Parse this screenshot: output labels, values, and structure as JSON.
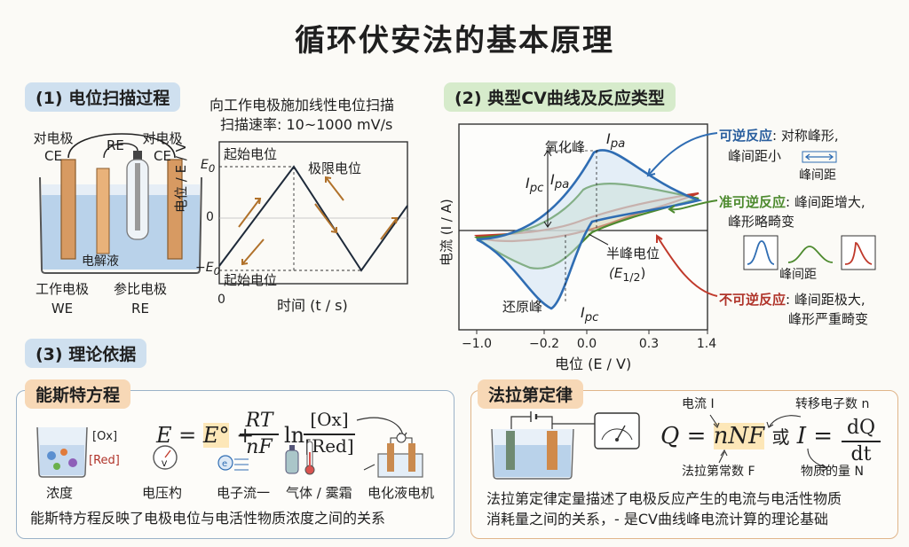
{
  "title": "循环伏安法的基本原理",
  "section1": {
    "label": "(1) 电位扫描过程",
    "cell": {
      "ce_left": "对电极",
      "ce_left_abbr": "CE",
      "re_top": "RE",
      "ce_right": "对电极",
      "ce_right_abbr": "CE",
      "electrolyte": "电解液",
      "we": "工作电极",
      "we_abbr": "WE",
      "ref": "参比电极",
      "ref_abbr": "RE"
    },
    "scan": {
      "heading": "向工作电极施加线性电位扫描",
      "rate": "扫描速率: 10~1000 mV/s",
      "start_top": "起始电位",
      "limit": "极限电位",
      "start_bottom": "起始电位",
      "y_tick_top": "E",
      "y_tick_top_sub": "0",
      "y_tick_mid": "0",
      "y_tick_bottom": "−E",
      "y_tick_bottom_sub": "0",
      "ylabel": "电位 / E / V",
      "x_tick_0": "0",
      "xlabel": "时间 (t / s)"
    }
  },
  "section2": {
    "label": "(2) 典型CV曲线及反应类型",
    "ylabel": "电流 (I / A)",
    "xlabel": "电位 (E / V)",
    "x_ticks": [
      "−1.0",
      "−0.2",
      "0.0",
      "0.3",
      "1.4"
    ],
    "oxidation_peak": "氧化峰",
    "ipa_label": "I",
    "ipa_sub": "pa",
    "ipc_label": "I",
    "ipc_sub": "pc",
    "reduction_peak": "还原峰",
    "half_wave": "半峰电位",
    "half_wave_symbol": "(E",
    "half_wave_sub": "1/2",
    "half_wave_close": ")",
    "reversible": {
      "name": "可逆反应",
      "desc1": ": 对称峰形,",
      "desc2": "峰间距小",
      "spacing": "峰间距"
    },
    "quasi": {
      "name": "准可逆反应",
      "desc1": ": 峰间距增大,",
      "desc2": "峰形略畸变",
      "spacing": "峰间距"
    },
    "irreversible": {
      "name": "不可逆反应",
      "desc1": ": 峰间距极大,",
      "desc2": "峰形严重畸变"
    },
    "colors": {
      "reversible": "#2f6db3",
      "quasi": "#4d8a2e",
      "irreversible": "#c0392b"
    }
  },
  "section3": {
    "label": "(3) 理论依据",
    "nernst": {
      "label": "能斯特方程",
      "ox": "[Ox]",
      "red": "[Red]",
      "concentration": "浓度",
      "eq_E": "E",
      "eq_eq": "=",
      "eq_E0": "E°",
      "eq_plus": "+",
      "eq_num": "RT",
      "eq_den": "nF",
      "eq_ln": "ln",
      "eq_frac_num": "[Ox]",
      "eq_frac_den": "[Red]",
      "voltmeter": "电压杓",
      "electron_flow": "电子流一",
      "gas": "气体 / 霙霜",
      "cell": "电化液电机",
      "summary": "能斯特方程反映了电极电位与电活性物质浓度之间的关系"
    },
    "faraday": {
      "label": "法拉第定律",
      "current": "电流 I",
      "electrons": "转移电子数 n",
      "eq_Q": "Q",
      "eq_eq": "=",
      "eq_nNF": "nNF",
      "eq_or": "或",
      "eq_I": "I",
      "eq_eq2": "=",
      "eq_dQ": "dQ",
      "eq_dt": "dt",
      "faraday_const": "法拉第常数 F",
      "amount": "物质的量 N",
      "summary1": "法拉第定律定量描述了电极反应产生的电流与电活性物质",
      "summary2": "消耗量之间的关系，- 是CV曲线峰电流计算的理论基础"
    }
  }
}
